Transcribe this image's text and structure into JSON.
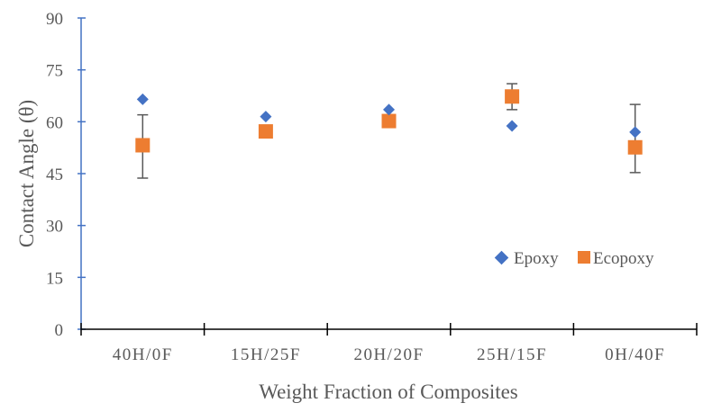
{
  "chart_data": {
    "type": "scatter",
    "title": "",
    "xlabel": "Weight Fraction of Composites",
    "ylabel": "Contact Angle (θ)",
    "categories": [
      "40H/0F",
      "15H/25F",
      "20H/20F",
      "25H/15F",
      "0H/40F"
    ],
    "ylim": [
      0,
      90
    ],
    "yticks": [
      0,
      15,
      30,
      45,
      60,
      75,
      90
    ],
    "grid": false,
    "legend_position": "inside-lower-right",
    "series": [
      {
        "name": "Epoxy",
        "marker": "diamond",
        "color": "#4472C4",
        "values": [
          66.5,
          61.5,
          63.5,
          58.8,
          57.0
        ],
        "error": [
          null,
          null,
          null,
          null,
          null
        ]
      },
      {
        "name": "Ecopoxy",
        "marker": "square",
        "color": "#ED7D31",
        "values": [
          53.2,
          57.2,
          60.2,
          67.3,
          52.6
        ],
        "error_low": [
          43.7,
          null,
          null,
          63.5,
          45.3
        ],
        "error_high": [
          62.0,
          null,
          null,
          71.0,
          65.0
        ]
      }
    ]
  },
  "axes": {
    "y_axis_color": "#4472C4",
    "x_axis_color": "#000000",
    "error_bar_color": "#595959"
  }
}
